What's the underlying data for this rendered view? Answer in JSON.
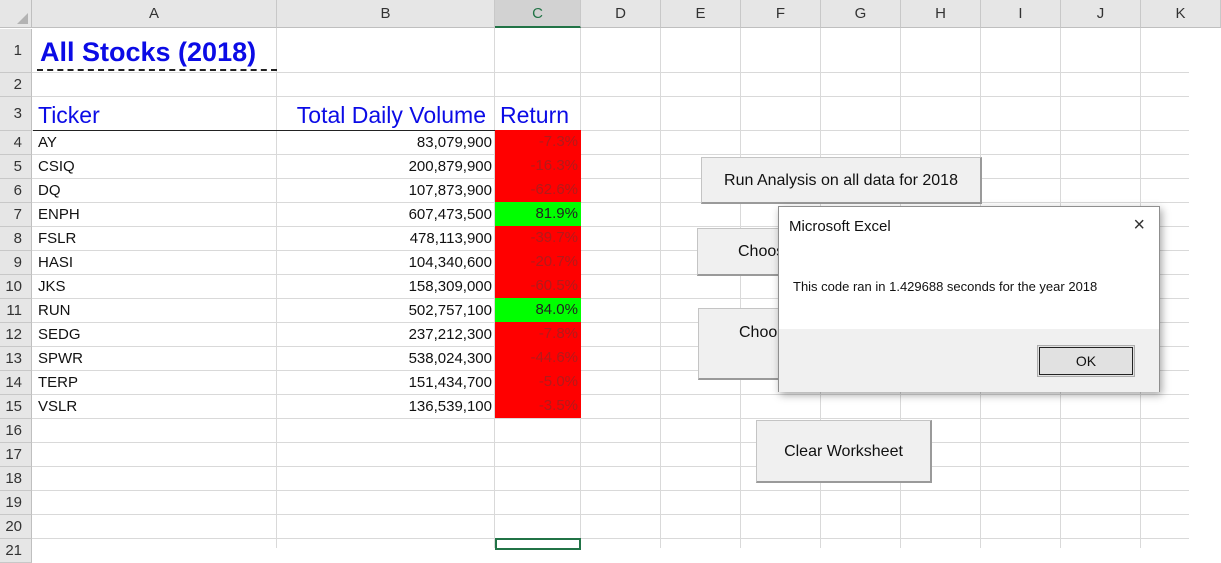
{
  "columns": [
    "A",
    "B",
    "C",
    "D",
    "E",
    "F",
    "G",
    "H",
    "I",
    "J",
    "K"
  ],
  "rows": [
    "1",
    "2",
    "3",
    "4",
    "5",
    "6",
    "7",
    "8",
    "9",
    "10",
    "11",
    "12",
    "13",
    "14",
    "15",
    "16",
    "17",
    "18",
    "19",
    "20",
    "21"
  ],
  "sheet": {
    "title": "All Stocks (2018)",
    "headers": {
      "ticker": "Ticker",
      "volume": "Total Daily Volume",
      "return": "Return"
    },
    "data": [
      {
        "ticker": "AY",
        "volume": "83,079,900",
        "return": "-7.3%",
        "positive": false
      },
      {
        "ticker": "CSIQ",
        "volume": "200,879,900",
        "return": "-16.3%",
        "positive": false
      },
      {
        "ticker": "DQ",
        "volume": "107,873,900",
        "return": "-62.6%",
        "positive": false
      },
      {
        "ticker": "ENPH",
        "volume": "607,473,500",
        "return": "81.9%",
        "positive": true
      },
      {
        "ticker": "FSLR",
        "volume": "478,113,900",
        "return": "-39.7%",
        "positive": false
      },
      {
        "ticker": "HASI",
        "volume": "104,340,600",
        "return": "-20.7%",
        "positive": false
      },
      {
        "ticker": "JKS",
        "volume": "158,309,000",
        "return": "-60.5%",
        "positive": false
      },
      {
        "ticker": "RUN",
        "volume": "502,757,100",
        "return": "84.0%",
        "positive": true
      },
      {
        "ticker": "SEDG",
        "volume": "237,212,300",
        "return": "-7.8%",
        "positive": false
      },
      {
        "ticker": "SPWR",
        "volume": "538,024,300",
        "return": "-44.6%",
        "positive": false
      },
      {
        "ticker": "TERP",
        "volume": "151,434,700",
        "return": "-5.0%",
        "positive": false
      },
      {
        "ticker": "VSLR",
        "volume": "136,539,100",
        "return": "-3.5%",
        "positive": false
      }
    ]
  },
  "buttons": {
    "run_all": "Run Analysis on all data for 2018",
    "choose1": "Choos",
    "choose2": "Choo",
    "clear": "Clear Worksheet"
  },
  "dialog": {
    "title": "Microsoft Excel",
    "message": "This code ran in 1.429688 seconds for the year 2018",
    "ok": "OK",
    "close_icon": "×"
  },
  "colors": {
    "positive_fill": "#00ff00",
    "negative_fill": "#ff0000",
    "title_text": "#0b0be6",
    "excel_green": "#217346"
  }
}
